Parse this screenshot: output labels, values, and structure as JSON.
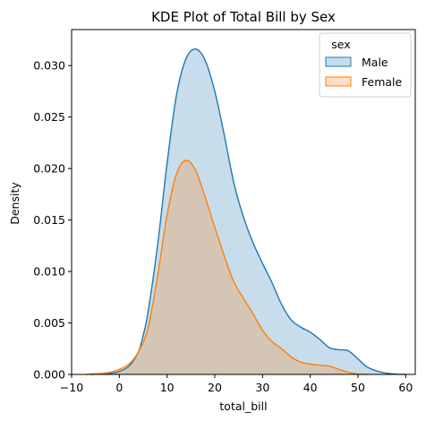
{
  "chart_data": {
    "type": "area",
    "title": "KDE Plot of Total Bill by Sex",
    "xlabel": "total_bill",
    "ylabel": "Density",
    "xlim": [
      -10,
      62
    ],
    "ylim": [
      0,
      0.0335
    ],
    "x_ticks": [
      -10,
      0,
      10,
      20,
      30,
      40,
      50,
      60
    ],
    "x_tick_labels": [
      "−10",
      "0",
      "10",
      "20",
      "30",
      "40",
      "50",
      "60"
    ],
    "y_ticks": [
      0,
      0.005,
      0.01,
      0.015,
      0.02,
      0.025,
      0.03
    ],
    "y_tick_labels": [
      "0.000",
      "0.005",
      "0.010",
      "0.015",
      "0.020",
      "0.025",
      "0.030"
    ],
    "grid": false,
    "legend": {
      "title": "sex",
      "placement": "top-right",
      "entries": [
        "Male",
        "Female"
      ]
    },
    "series": [
      {
        "name": "Male",
        "line_color": "#1f77b4",
        "fill_color": "#1f77b4",
        "fill_opacity": 0.25,
        "points": [
          [
            -6,
            0
          ],
          [
            -2,
            0.0001
          ],
          [
            0,
            0.0003
          ],
          [
            2,
            0.0008
          ],
          [
            4,
            0.0022
          ],
          [
            5,
            0.0038
          ],
          [
            6,
            0.006
          ],
          [
            8,
            0.0125
          ],
          [
            10,
            0.0205
          ],
          [
            12,
            0.0272
          ],
          [
            14,
            0.0307
          ],
          [
            16,
            0.0316
          ],
          [
            18,
            0.0305
          ],
          [
            20,
            0.0275
          ],
          [
            22,
            0.0232
          ],
          [
            24,
            0.0186
          ],
          [
            26,
            0.0153
          ],
          [
            28,
            0.0128
          ],
          [
            30,
            0.0108
          ],
          [
            32,
            0.0089
          ],
          [
            34,
            0.0068
          ],
          [
            36,
            0.0053
          ],
          [
            38,
            0.0046
          ],
          [
            40,
            0.0041
          ],
          [
            42,
            0.0034
          ],
          [
            44,
            0.0026
          ],
          [
            46,
            0.0024
          ],
          [
            48,
            0.0023
          ],
          [
            50,
            0.0015
          ],
          [
            52,
            0.0007
          ],
          [
            55,
            0.0002
          ],
          [
            58,
            3e-05
          ],
          [
            60,
            0
          ]
        ]
      },
      {
        "name": "Female",
        "line_color": "#ff7f0e",
        "fill_color": "#ff7f0e",
        "fill_opacity": 0.25,
        "points": [
          [
            -7,
            0
          ],
          [
            -4,
            0.0001
          ],
          [
            -2,
            0.0002
          ],
          [
            0,
            0.0005
          ],
          [
            2,
            0.001
          ],
          [
            4,
            0.0022
          ],
          [
            6,
            0.0045
          ],
          [
            8,
            0.0095
          ],
          [
            10,
            0.0155
          ],
          [
            12,
            0.0195
          ],
          [
            14,
            0.0208
          ],
          [
            16,
            0.0198
          ],
          [
            18,
            0.0172
          ],
          [
            20,
            0.0143
          ],
          [
            22,
            0.0115
          ],
          [
            24,
            0.009
          ],
          [
            26,
            0.0074
          ],
          [
            28,
            0.0059
          ],
          [
            30,
            0.0043
          ],
          [
            32,
            0.0032
          ],
          [
            34,
            0.0025
          ],
          [
            36,
            0.0017
          ],
          [
            38,
            0.0012
          ],
          [
            40,
            0.001
          ],
          [
            42,
            0.0009
          ],
          [
            44,
            0.0008
          ],
          [
            46,
            0.0005
          ],
          [
            48,
            0.0002
          ],
          [
            50,
            5e-05
          ],
          [
            52,
            0
          ]
        ]
      }
    ]
  }
}
